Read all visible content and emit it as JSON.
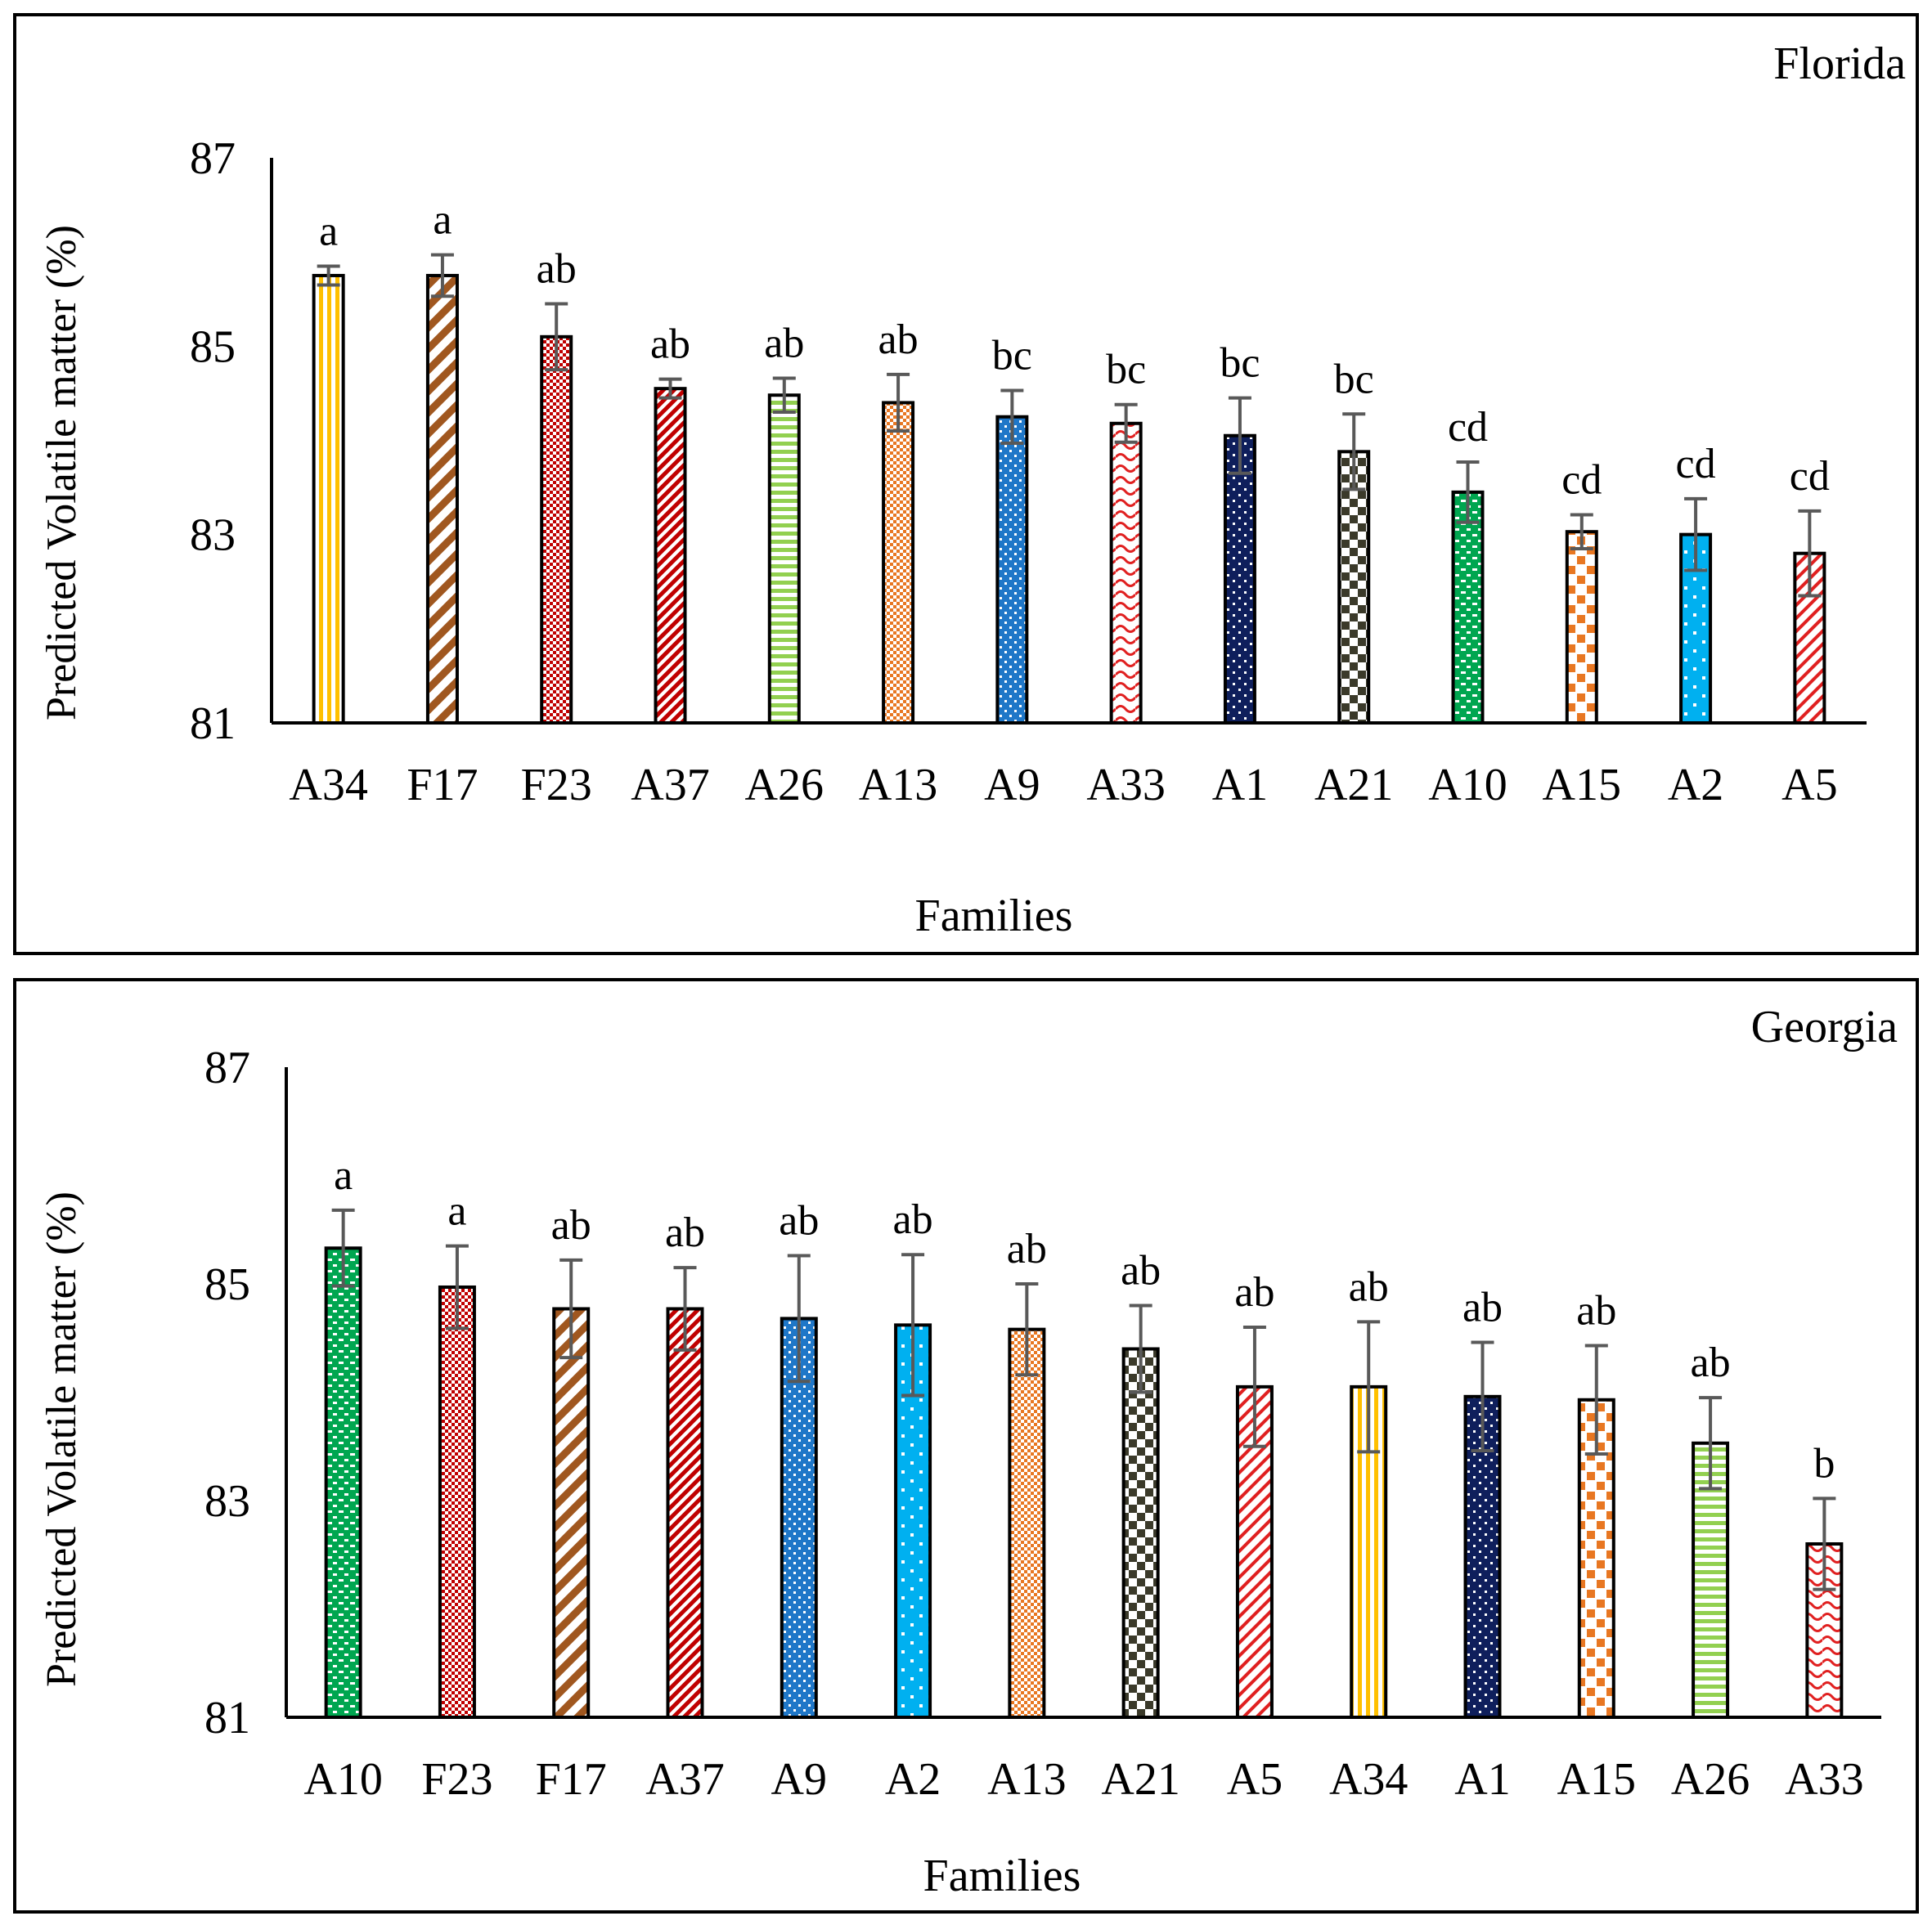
{
  "colors": {
    "axis": "#000000",
    "error_bar": "#595959",
    "yellow": "#ffc000",
    "brown": "#a0571f",
    "red": "#c00000",
    "crimson": "#e02020",
    "green_light": "#92d050",
    "orange": "#e87722",
    "blue": "#1f77c8",
    "navy": "#0f1f5c",
    "olive_dark": "#3b3a2a",
    "green": "#00a650",
    "cyan": "#00b0f0"
  },
  "chart_data": [
    {
      "type": "bar",
      "title": "Florida",
      "xlabel": "Families",
      "ylabel": "Predicted  Volatile  matter (%)",
      "ylim": [
        81,
        87
      ],
      "yticks": [
        "81",
        "83",
        "85",
        "87"
      ],
      "categories": [
        "A34",
        "F17",
        "F23",
        "A37",
        "A26",
        "A13",
        "A9",
        "A33",
        "A1",
        "A21",
        "A10",
        "A15",
        "A2",
        "A5"
      ],
      "values": [
        85.75,
        85.75,
        85.1,
        84.55,
        84.48,
        84.4,
        84.25,
        84.18,
        84.05,
        83.88,
        83.45,
        83.03,
        83.0,
        82.8
      ],
      "errors": [
        0.1,
        0.22,
        0.35,
        0.1,
        0.18,
        0.3,
        0.28,
        0.2,
        0.4,
        0.4,
        0.32,
        0.18,
        0.38,
        0.45
      ],
      "letters": [
        "a",
        "a",
        "ab",
        "ab",
        "ab",
        "ab",
        "bc",
        "bc",
        "bc",
        "bc",
        "cd",
        "cd",
        "cd",
        "cd"
      ],
      "patterns": [
        "vstripe-yellow",
        "diag-brown",
        "check-red",
        "diag-red",
        "hstripe-green",
        "check-orange",
        "dot-blue",
        "wave-red",
        "dot-navy",
        "check-olive",
        "dot-green",
        "brick-orange",
        "dot-cyan",
        "diag2-red"
      ],
      "grid": false,
      "legend": "none"
    },
    {
      "type": "bar",
      "title": "Georgia",
      "xlabel": "Families",
      "ylabel": "Predicted  Volatile  matter (%)",
      "ylim": [
        81,
        87
      ],
      "yticks": [
        "81",
        "83",
        "85",
        "87"
      ],
      "categories": [
        "A10",
        "F23",
        "F17",
        "A37",
        "A9",
        "A2",
        "A13",
        "A21",
        "A5",
        "A34",
        "A1",
        "A15",
        "A26",
        "A33"
      ],
      "values": [
        85.33,
        84.97,
        84.77,
        84.77,
        84.68,
        84.62,
        84.58,
        84.4,
        84.05,
        84.05,
        83.96,
        83.93,
        83.53,
        82.6
      ],
      "errors": [
        0.35,
        0.38,
        0.45,
        0.38,
        0.58,
        0.65,
        0.42,
        0.4,
        0.55,
        0.6,
        0.5,
        0.5,
        0.42,
        0.42
      ],
      "letters": [
        "a",
        "a",
        "ab",
        "ab",
        "ab",
        "ab",
        "ab",
        "ab",
        "ab",
        "ab",
        "ab",
        "ab",
        "ab",
        "b"
      ],
      "patterns": [
        "dot-green",
        "check-red",
        "diag-brown",
        "diag-red",
        "dot-blue",
        "dot-cyan",
        "check-orange",
        "check-olive",
        "diag2-red",
        "vstripe-yellow",
        "dot-navy",
        "brick-orange",
        "hstripe-green",
        "wave-red"
      ],
      "grid": false,
      "legend": "none"
    }
  ]
}
